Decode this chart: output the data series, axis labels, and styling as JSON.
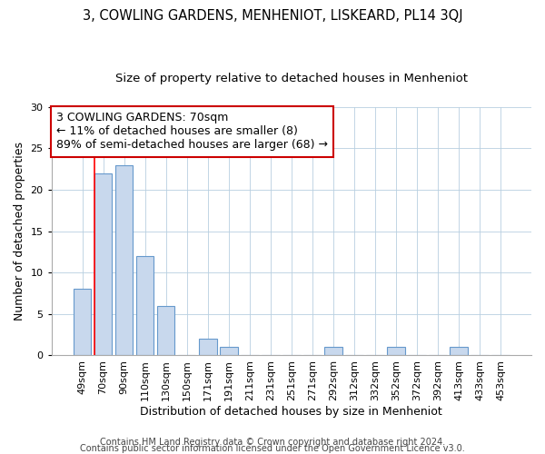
{
  "title": "3, COWLING GARDENS, MENHENIOT, LISKEARD, PL14 3QJ",
  "subtitle": "Size of property relative to detached houses in Menheniot",
  "xlabel": "Distribution of detached houses by size in Menheniot",
  "ylabel": "Number of detached properties",
  "categories": [
    "49sqm",
    "70sqm",
    "90sqm",
    "110sqm",
    "130sqm",
    "150sqm",
    "171sqm",
    "191sqm",
    "211sqm",
    "231sqm",
    "251sqm",
    "271sqm",
    "292sqm",
    "312sqm",
    "332sqm",
    "352sqm",
    "372sqm",
    "392sqm",
    "413sqm",
    "433sqm",
    "453sqm"
  ],
  "values": [
    8,
    22,
    23,
    12,
    6,
    0,
    2,
    1,
    0,
    0,
    0,
    0,
    1,
    0,
    0,
    1,
    0,
    0,
    1,
    0,
    0
  ],
  "bar_color": "#c8d8ed",
  "bar_edge_color": "#6699cc",
  "red_line_index": 1,
  "annotation_line1": "3 COWLING GARDENS: 70sqm",
  "annotation_line2": "← 11% of detached houses are smaller (8)",
  "annotation_line3": "89% of semi-detached houses are larger (68) →",
  "annotation_box_color": "#ffffff",
  "annotation_box_edge_color": "#cc0000",
  "ylim": [
    0,
    30
  ],
  "yticks": [
    0,
    5,
    10,
    15,
    20,
    25,
    30
  ],
  "footer_line1": "Contains HM Land Registry data © Crown copyright and database right 2024.",
  "footer_line2": "Contains public sector information licensed under the Open Government Licence v3.0.",
  "title_fontsize": 10.5,
  "subtitle_fontsize": 9.5,
  "axis_label_fontsize": 9,
  "tick_fontsize": 8,
  "annotation_fontsize": 9,
  "footer_fontsize": 7,
  "background_color": "#ffffff",
  "grid_color": "#b8cfe0"
}
